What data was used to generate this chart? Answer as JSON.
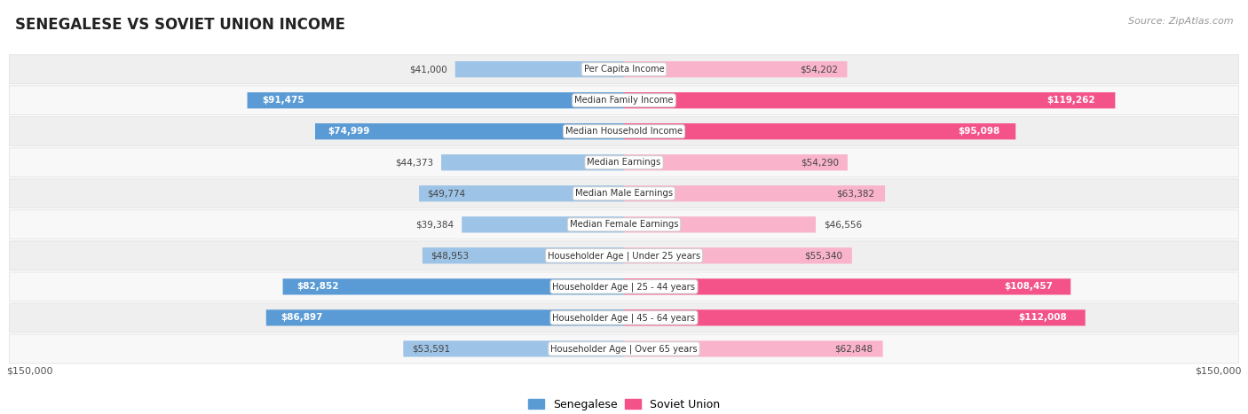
{
  "title": "SENEGALESE VS SOVIET UNION INCOME",
  "source": "Source: ZipAtlas.com",
  "categories": [
    "Per Capita Income",
    "Median Family Income",
    "Median Household Income",
    "Median Earnings",
    "Median Male Earnings",
    "Median Female Earnings",
    "Householder Age | Under 25 years",
    "Householder Age | 25 - 44 years",
    "Householder Age | 45 - 64 years",
    "Householder Age | Over 65 years"
  ],
  "senegalese_values": [
    41000,
    91475,
    74999,
    44373,
    49774,
    39384,
    48953,
    82852,
    86897,
    53591
  ],
  "soviet_values": [
    54202,
    119262,
    95098,
    54290,
    63382,
    46556,
    55340,
    108457,
    112008,
    62848
  ],
  "senegalese_labels": [
    "$41,000",
    "$91,475",
    "$74,999",
    "$44,373",
    "$49,774",
    "$39,384",
    "$48,953",
    "$82,852",
    "$86,897",
    "$53,591"
  ],
  "soviet_labels": [
    "$54,202",
    "$119,262",
    "$95,098",
    "$54,290",
    "$63,382",
    "$46,556",
    "$55,340",
    "$108,457",
    "$112,008",
    "$62,848"
  ],
  "max_value": 150000,
  "color_senegalese_dark": "#5B9BD5",
  "color_senegalese_light": "#9DC3E6",
  "color_soviet_dark": "#F4538A",
  "color_soviet_light": "#F9B4CB",
  "highlight_rows": [
    1,
    2,
    7,
    8
  ],
  "background_color": "#ffffff",
  "row_bg_odd": "#efefef",
  "row_bg_even": "#f8f8f8",
  "row_border": "#dddddd"
}
